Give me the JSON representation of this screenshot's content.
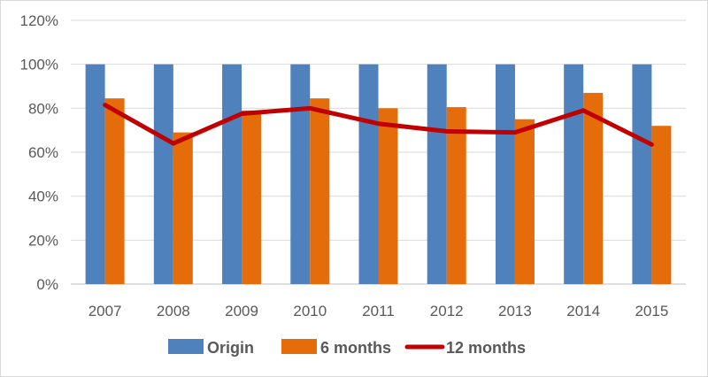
{
  "chart_data": {
    "type": "bar",
    "categories": [
      "2007",
      "2008",
      "2009",
      "2010",
      "2011",
      "2012",
      "2013",
      "2014",
      "2015"
    ],
    "series": [
      {
        "name": "Origin",
        "kind": "bar",
        "color": "#4f81bd",
        "values": [
          1.0,
          1.0,
          1.0,
          1.0,
          1.0,
          1.0,
          1.0,
          1.0,
          1.0
        ]
      },
      {
        "name": "6 months",
        "kind": "bar",
        "color": "#e46c0a",
        "values": [
          0.845,
          0.69,
          0.79,
          0.845,
          0.8,
          0.805,
          0.75,
          0.87,
          0.72
        ]
      },
      {
        "name": "12 months",
        "kind": "line",
        "color": "#c00000",
        "values": [
          0.815,
          0.64,
          0.775,
          0.8,
          0.73,
          0.695,
          0.69,
          0.79,
          0.635
        ]
      }
    ],
    "yticks": [
      "0%",
      "20%",
      "40%",
      "60%",
      "80%",
      "100%",
      "120%"
    ],
    "ylim": [
      0,
      1.2
    ],
    "grid": true,
    "legend_position": "bottom"
  }
}
